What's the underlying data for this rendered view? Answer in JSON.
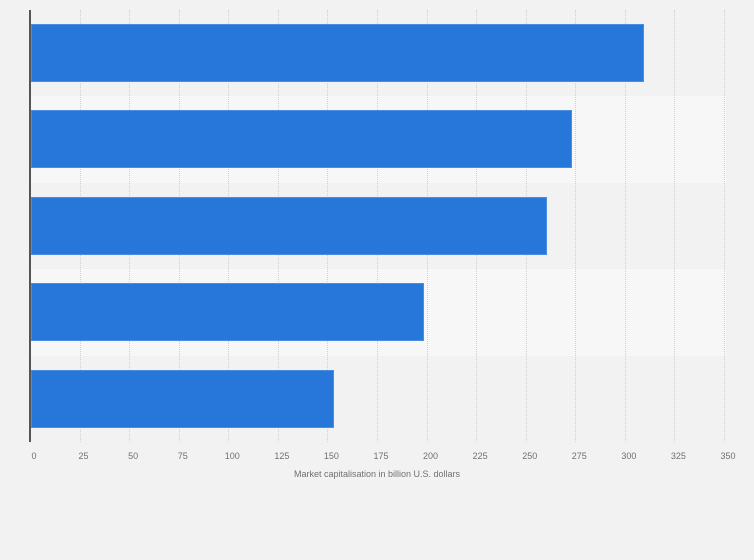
{
  "chart_data": {
    "type": "bar",
    "orientation": "horizontal",
    "title": "",
    "categories": [
      "",
      "",
      "",
      "",
      ""
    ],
    "values": [
      309,
      273,
      260,
      198,
      153
    ],
    "xlabel": "Market capitalisation in billion U.S. dollars",
    "ylabel": "",
    "xlim": [
      0,
      350
    ],
    "xticks": [
      0,
      25,
      50,
      75,
      100,
      125,
      150,
      175,
      200,
      225,
      250,
      275,
      300,
      325,
      350
    ],
    "grid": true,
    "legend": null,
    "bar_color": "#2776d9"
  },
  "axis": {
    "ticks": [
      "0",
      "25",
      "50",
      "75",
      "100",
      "125",
      "150",
      "175",
      "200",
      "225",
      "250",
      "275",
      "300",
      "325",
      "350"
    ],
    "label": "Market capitalisation in billion U.S. dollars"
  }
}
